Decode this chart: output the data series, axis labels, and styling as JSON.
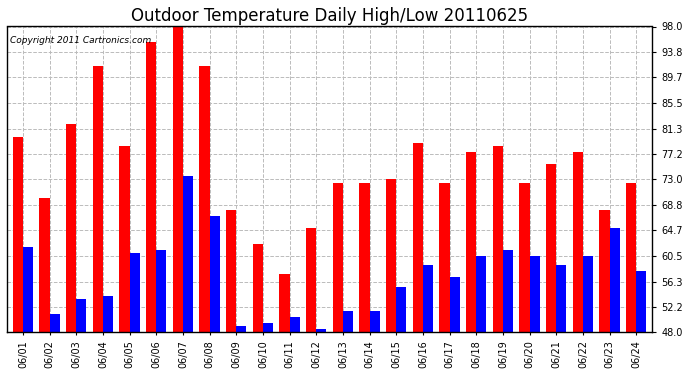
{
  "title": "Outdoor Temperature Daily High/Low 20110625",
  "copyright": "Copyright 2011 Cartronics.com",
  "dates": [
    "06/01",
    "06/02",
    "06/03",
    "06/04",
    "06/05",
    "06/06",
    "06/07",
    "06/08",
    "06/09",
    "06/10",
    "06/11",
    "06/12",
    "06/13",
    "06/14",
    "06/15",
    "06/16",
    "06/17",
    "06/18",
    "06/19",
    "06/20",
    "06/21",
    "06/22",
    "06/23",
    "06/24"
  ],
  "highs": [
    80.0,
    70.0,
    82.0,
    91.5,
    78.5,
    95.5,
    98.0,
    91.5,
    68.0,
    62.5,
    57.5,
    65.0,
    72.5,
    72.5,
    73.0,
    79.0,
    72.5,
    77.5,
    78.5,
    72.5,
    75.5,
    77.5,
    68.0,
    72.5
  ],
  "lows": [
    62.0,
    51.0,
    53.5,
    54.0,
    61.0,
    61.5,
    73.5,
    67.0,
    49.0,
    49.5,
    50.5,
    48.5,
    51.5,
    51.5,
    55.5,
    59.0,
    57.0,
    60.5,
    61.5,
    60.5,
    59.0,
    60.5,
    65.0,
    58.0
  ],
  "high_color": "#ff0000",
  "low_color": "#0000ff",
  "background_color": "#ffffff",
  "grid_color": "#bbbbbb",
  "ymin": 48.0,
  "ymax": 98.0,
  "yticks": [
    48.0,
    52.2,
    56.3,
    60.5,
    64.7,
    68.8,
    73.0,
    77.2,
    81.3,
    85.5,
    89.7,
    93.8,
    98.0
  ],
  "bar_width": 0.38,
  "title_fontsize": 12,
  "tick_fontsize": 7,
  "copyright_fontsize": 6.5
}
